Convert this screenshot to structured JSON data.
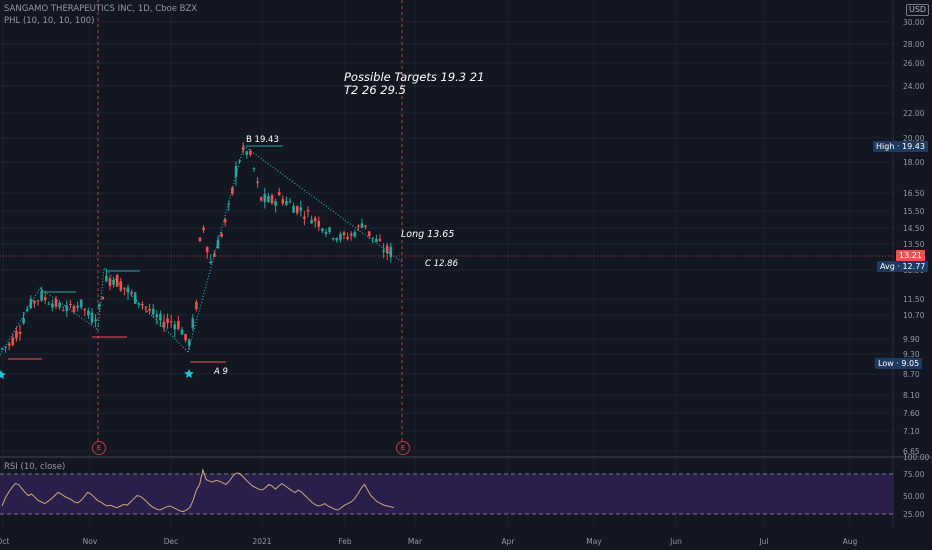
{
  "header": {
    "symbol_line": "SANGAMO THERAPEUTICS INC, 1D, Cboe BZX",
    "indicator_line": "PHL (10, 10, 10, 100)",
    "currency": "USD"
  },
  "price_axis": {
    "ticks": [
      "30.00",
      "28.00",
      "26.00",
      "24.00",
      "22.00",
      "20.00",
      "18.00",
      "16.50",
      "15.50",
      "14.50",
      "13.50",
      "12.50",
      "11.50",
      "10.70",
      "9.90",
      "9.30",
      "8.70",
      "8.10",
      "7.60",
      "7.10",
      "6.65"
    ],
    "high_label": "High",
    "high_value": "19.43",
    "last_value": "13.21",
    "avg_label": "Avg",
    "avg_value": "12.77",
    "low_label": "Low",
    "low_value": "9.05"
  },
  "annotations": {
    "targets_line1": "Possible Targets   19.3  21",
    "targets_line2": "T2  26  29.5",
    "point_b": "B 19.43",
    "point_a": "A  9",
    "point_c": "C 12.86",
    "long_label": "Long   13.65",
    "earnings_marker": "E"
  },
  "rsi": {
    "label": "RSI (10, close)",
    "ticks": [
      "100.00",
      "75.00",
      "50.00",
      "25.00"
    ],
    "upper_band": 75,
    "lower_band": 25,
    "values": [
      35,
      45,
      52,
      58,
      63,
      62,
      57,
      52,
      48,
      50,
      46,
      42,
      40,
      38,
      41,
      44,
      48,
      52,
      50,
      47,
      45,
      43,
      40,
      39,
      42,
      47,
      52,
      50,
      46,
      42,
      40,
      37,
      35,
      36,
      34,
      33,
      35,
      37,
      36,
      40,
      44,
      48,
      47,
      44,
      40,
      36,
      33,
      31,
      30,
      32,
      34,
      35,
      33,
      31,
      29,
      28,
      30,
      33,
      42,
      55,
      62,
      80,
      68,
      66,
      65,
      67,
      66,
      64,
      62,
      66,
      72,
      76,
      76,
      72,
      68,
      64,
      60,
      58,
      56,
      55,
      58,
      62,
      60,
      56,
      60,
      63,
      60,
      57,
      54,
      52,
      55,
      52,
      48,
      44,
      40,
      37,
      35,
      36,
      38,
      35,
      33,
      31,
      30,
      33,
      36,
      38,
      40,
      44,
      50,
      57,
      62,
      55,
      48,
      44,
      40,
      38,
      36,
      35,
      34,
      33
    ]
  },
  "time_axis": {
    "labels": [
      "Oct",
      "Nov",
      "Dec",
      "2021",
      "Feb",
      "Mar",
      "Apr",
      "May",
      "Jun",
      "Jul",
      "Aug"
    ]
  },
  "colors": {
    "background": "#131722",
    "up": "#26a69a",
    "down": "#ef5350",
    "grid": "#1e222d",
    "rsi_fill": "#2a1e4a",
    "rsi_line": "#c8aa78"
  }
}
